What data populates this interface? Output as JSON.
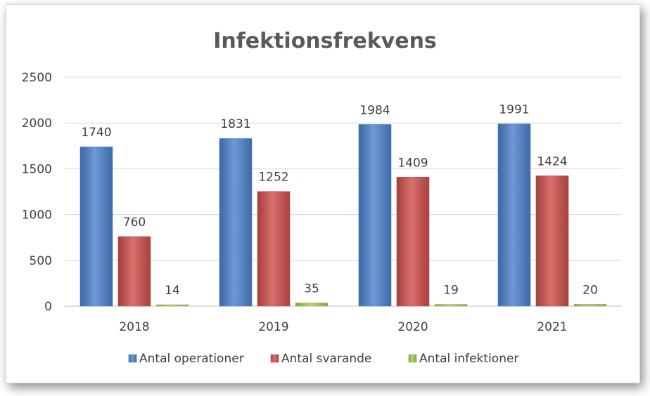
{
  "chart_data": {
    "type": "bar",
    "title": "Infektionsfrekvens",
    "categories": [
      "2018",
      "2019",
      "2020",
      "2021"
    ],
    "series": [
      {
        "name": "Antal operationer",
        "values": [
          1740,
          1831,
          1984,
          1991
        ],
        "color": "#4f81bd"
      },
      {
        "name": "Antal svarande",
        "values": [
          760,
          1252,
          1409,
          1424
        ],
        "color": "#c0504d"
      },
      {
        "name": "Antal infektioner",
        "values": [
          14,
          35,
          19,
          20
        ],
        "color": "#9bbb59"
      }
    ],
    "yticks": [
      "0",
      "500",
      "1000",
      "1500",
      "2000",
      "2500"
    ],
    "ylim": [
      0,
      2500
    ],
    "grid": true,
    "legend": "bottom",
    "data_labels": true
  }
}
